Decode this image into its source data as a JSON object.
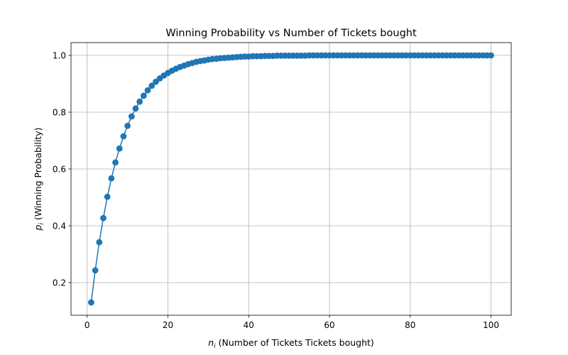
{
  "chart_data": {
    "type": "line",
    "title": "Winning Probability vs Number of Tickets bought",
    "xlabel": {
      "var": "n",
      "sub": "i",
      "text": " (Number of Tickets Tickets bought)"
    },
    "ylabel": {
      "var": "p",
      "sub": "i",
      "text": " (Winning Probability)"
    },
    "xlim": [
      -4.0,
      105.0
    ],
    "ylim": [
      0.085,
      1.045
    ],
    "xticks": [
      0,
      20,
      40,
      60,
      80,
      100
    ],
    "yticks": [
      0.2,
      0.4,
      0.6,
      0.8,
      1.0
    ],
    "xtick_labels": [
      "0",
      "20",
      "40",
      "60",
      "80",
      "100"
    ],
    "ytick_labels": [
      "0.2",
      "0.4",
      "0.6",
      "0.8",
      "1.0"
    ],
    "grid": true,
    "marker": "circle",
    "colors": {
      "series": "#1f77b4"
    },
    "series": [
      {
        "x": [
          1,
          2,
          3,
          4,
          5,
          6,
          7,
          8,
          9,
          10,
          11,
          12,
          13,
          14,
          15,
          16,
          17,
          18,
          19,
          20,
          21,
          22,
          23,
          24,
          25,
          26,
          27,
          28,
          29,
          30,
          31,
          32,
          33,
          34,
          35,
          36,
          37,
          38,
          39,
          40,
          41,
          42,
          43,
          44,
          45,
          46,
          47,
          48,
          49,
          50,
          51,
          52,
          53,
          54,
          55,
          56,
          57,
          58,
          59,
          60,
          61,
          62,
          63,
          64,
          65,
          66,
          67,
          68,
          69,
          70,
          71,
          72,
          73,
          74,
          75,
          76,
          77,
          78,
          79,
          80,
          81,
          82,
          83,
          84,
          85,
          86,
          87,
          88,
          89,
          90,
          91,
          92,
          93,
          94,
          95,
          96,
          97,
          98,
          99,
          100
        ],
        "y": [
          0.13,
          0.243,
          0.342,
          0.427,
          0.502,
          0.567,
          0.623,
          0.672,
          0.715,
          0.752,
          0.785,
          0.813,
          0.837,
          0.858,
          0.877,
          0.893,
          0.907,
          0.919,
          0.929,
          0.938,
          0.946,
          0.953,
          0.959,
          0.964,
          0.969,
          0.973,
          0.977,
          0.98,
          0.982,
          0.985,
          0.987,
          0.988,
          0.99,
          0.991,
          0.992,
          0.993,
          0.994,
          0.995,
          0.996,
          0.996,
          0.997,
          0.997,
          0.997,
          0.998,
          0.998,
          0.998,
          0.999,
          0.999,
          0.999,
          0.999,
          0.999,
          0.999,
          0.999,
          0.999,
          1.0,
          1.0,
          1.0,
          1.0,
          1.0,
          1.0,
          1.0,
          1.0,
          1.0,
          1.0,
          1.0,
          1.0,
          1.0,
          1.0,
          1.0,
          1.0,
          1.0,
          1.0,
          1.0,
          1.0,
          1.0,
          1.0,
          1.0,
          1.0,
          1.0,
          1.0,
          1.0,
          1.0,
          1.0,
          1.0,
          1.0,
          1.0,
          1.0,
          1.0,
          1.0,
          1.0,
          1.0,
          1.0,
          1.0,
          1.0,
          1.0,
          1.0,
          1.0,
          1.0,
          1.0,
          1.0
        ]
      }
    ]
  }
}
